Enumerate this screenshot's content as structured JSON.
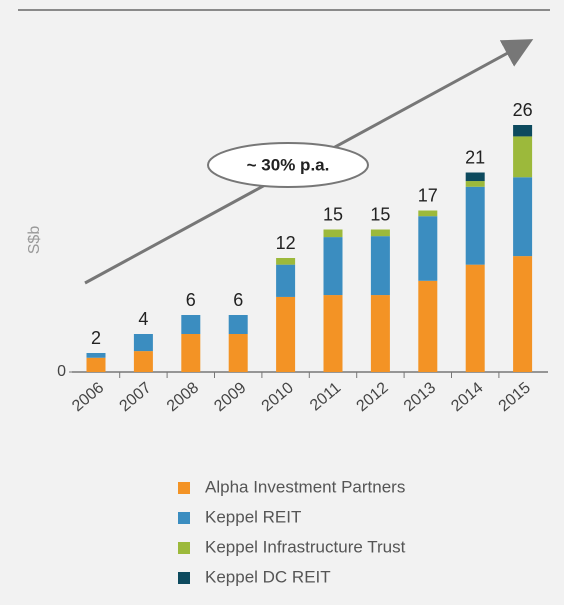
{
  "chart_data": {
    "type": "stacked_bar",
    "y_label": "S$b",
    "annotation": "~ 30% p.a.",
    "categories": [
      "2006",
      "2007",
      "2008",
      "2009",
      "2010",
      "2011",
      "2012",
      "2013",
      "2014",
      "2015"
    ],
    "totals": [
      2,
      4,
      6,
      6,
      12,
      15,
      15,
      17,
      21,
      26
    ],
    "series": [
      {
        "name": "Alpha Investment Partners",
        "color": "#f39325",
        "values": [
          1.5,
          2.2,
          4,
          4,
          7.9,
          8.1,
          8.1,
          9.6,
          11.3,
          12.2
        ]
      },
      {
        "name": "Keppel REIT",
        "color": "#3b8dc0",
        "values": [
          0.5,
          1.8,
          2,
          2,
          3.4,
          6.1,
          6.2,
          6.8,
          8.2,
          8.3
        ]
      },
      {
        "name": "Keppel Infrastructure Trust",
        "color": "#9cb93b",
        "values": [
          0,
          0,
          0,
          0,
          0.7,
          0.8,
          0.7,
          0.6,
          0.6,
          4.3
        ]
      },
      {
        "name": "Keppel DC REIT",
        "color": "#0d4a5e",
        "values": [
          0,
          0,
          0,
          0,
          0,
          0,
          0,
          0,
          0.9,
          1.2
        ]
      }
    ],
    "ylim": [
      0,
      30
    ],
    "yticks": [
      0
    ]
  }
}
